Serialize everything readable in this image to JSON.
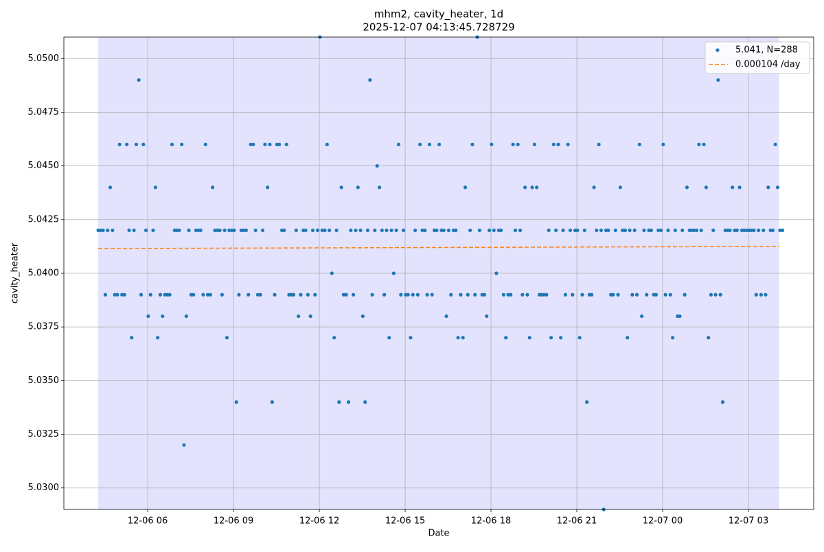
{
  "chart_data": {
    "type": "scatter",
    "title": "mhm2, cavity_heater, 1d",
    "subtitle": "2025-12-07 04:13:45.728729",
    "x_label": "Date",
    "y_label": "cavity_heater",
    "xlim": [
      3.07,
      29.28
    ],
    "ylim": [
      5.029,
      5.051
    ],
    "xticks": [
      {
        "value": 6,
        "label": "12-06 06"
      },
      {
        "value": 9,
        "label": "12-06 09"
      },
      {
        "value": 12,
        "label": "12-06 12"
      },
      {
        "value": 15,
        "label": "12-06 15"
      },
      {
        "value": 18,
        "label": "12-06 18"
      },
      {
        "value": 21,
        "label": "12-06 21"
      },
      {
        "value": 24,
        "label": "12-07 00"
      },
      {
        "value": 27,
        "label": "12-07 03"
      }
    ],
    "yticks": [
      {
        "value": 5.03,
        "label": "5.0300"
      },
      {
        "value": 5.0325,
        "label": "5.0325"
      },
      {
        "value": 5.035,
        "label": "5.0350"
      },
      {
        "value": 5.0375,
        "label": "5.0375"
      },
      {
        "value": 5.04,
        "label": "5.0400"
      },
      {
        "value": 5.0425,
        "label": "5.0425"
      },
      {
        "value": 5.045,
        "label": "5.0450"
      },
      {
        "value": 5.0475,
        "label": "5.0475"
      },
      {
        "value": 5.05,
        "label": "5.0500"
      }
    ],
    "grid": true,
    "legend": "upper right",
    "span": [
      4.27,
      28.07
    ],
    "span_color": "#e3e3fd",
    "series": [
      {
        "name": "5.041, N=288",
        "color": "#1f77b4",
        "x": [
          4.27,
          4.35,
          4.44,
          4.52,
          4.6,
          4.69,
          4.77,
          4.85,
          4.94,
          5.02,
          5.1,
          5.19,
          5.27,
          5.35,
          5.44,
          5.52,
          5.6,
          5.69,
          5.77,
          5.85,
          5.94,
          6.02,
          6.1,
          6.19,
          6.27,
          6.35,
          6.44,
          6.52,
          6.6,
          6.69,
          6.77,
          6.85,
          6.94,
          7.02,
          7.1,
          7.19,
          7.27,
          7.35,
          7.44,
          7.52,
          7.6,
          7.69,
          7.77,
          7.85,
          7.94,
          8.02,
          8.1,
          8.19,
          8.27,
          8.35,
          8.44,
          8.52,
          8.6,
          8.69,
          8.77,
          8.85,
          8.94,
          9.02,
          9.1,
          9.19,
          9.27,
          9.35,
          9.44,
          9.52,
          9.6,
          9.69,
          9.77,
          9.85,
          9.94,
          10.02,
          10.1,
          10.19,
          10.27,
          10.35,
          10.44,
          10.52,
          10.6,
          10.69,
          10.77,
          10.85,
          10.94,
          11.02,
          11.1,
          11.19,
          11.27,
          11.35,
          11.44,
          11.52,
          11.6,
          11.69,
          11.77,
          11.85,
          11.94,
          12.02,
          12.1,
          12.19,
          12.27,
          12.35,
          12.44,
          12.52,
          12.6,
          12.69,
          12.77,
          12.85,
          12.94,
          13.02,
          13.1,
          13.19,
          13.27,
          13.35,
          13.44,
          13.52,
          13.6,
          13.69,
          13.77,
          13.85,
          13.94,
          14.02,
          14.1,
          14.19,
          14.27,
          14.35,
          14.44,
          14.52,
          14.6,
          14.69,
          14.77,
          14.85,
          14.94,
          15.02,
          15.1,
          15.19,
          15.27,
          15.35,
          15.44,
          15.52,
          15.6,
          15.69,
          15.77,
          15.85,
          15.94,
          16.02,
          16.1,
          16.19,
          16.27,
          16.35,
          16.44,
          16.52,
          16.6,
          16.69,
          16.77,
          16.85,
          16.94,
          17.02,
          17.1,
          17.19,
          17.27,
          17.35,
          17.44,
          17.52,
          17.6,
          17.69,
          17.77,
          17.85,
          17.94,
          18.02,
          18.1,
          18.19,
          18.27,
          18.35,
          18.44,
          18.52,
          18.6,
          18.69,
          18.77,
          18.85,
          18.94,
          19.02,
          19.1,
          19.19,
          19.27,
          19.35,
          19.44,
          19.52,
          19.6,
          19.69,
          19.77,
          19.85,
          19.94,
          20.02,
          20.1,
          20.19,
          20.27,
          20.35,
          20.44,
          20.52,
          20.6,
          20.69,
          20.77,
          20.85,
          20.94,
          21.02,
          21.1,
          21.19,
          21.27,
          21.35,
          21.44,
          21.52,
          21.6,
          21.69,
          21.77,
          21.85,
          21.94,
          22.02,
          22.1,
          22.19,
          22.27,
          22.35,
          22.44,
          22.52,
          22.6,
          22.69,
          22.77,
          22.85,
          22.94,
          23.02,
          23.1,
          23.19,
          23.27,
          23.35,
          23.44,
          23.52,
          23.6,
          23.69,
          23.77,
          23.85,
          23.94,
          24.02,
          24.1,
          24.19,
          24.27,
          24.35,
          24.44,
          24.52,
          24.6,
          24.69,
          24.77,
          24.85,
          24.94,
          25.02,
          25.1,
          25.19,
          25.27,
          25.35,
          25.44,
          25.52,
          25.6,
          25.69,
          25.77,
          25.85,
          25.94,
          26.02,
          26.1,
          26.19,
          26.27,
          26.35,
          26.44,
          26.52,
          26.6,
          26.69,
          26.77,
          26.85,
          26.94,
          27.02,
          27.1,
          27.19,
          27.27,
          27.35,
          27.44,
          27.52,
          27.6,
          27.69,
          27.77,
          27.85,
          27.94,
          28.02,
          28.1,
          28.19
        ],
        "values": [
          5.042,
          5.042,
          5.042,
          5.039,
          5.042,
          5.044,
          5.042,
          5.039,
          5.039,
          5.046,
          5.039,
          5.039,
          5.046,
          5.042,
          5.037,
          5.042,
          5.046,
          5.049,
          5.039,
          5.046,
          5.042,
          5.038,
          5.039,
          5.042,
          5.044,
          5.037,
          5.039,
          5.038,
          5.039,
          5.039,
          5.039,
          5.046,
          5.042,
          5.042,
          5.042,
          5.046,
          5.032,
          5.038,
          5.042,
          5.039,
          5.039,
          5.042,
          5.042,
          5.042,
          5.039,
          5.046,
          5.039,
          5.039,
          5.044,
          5.042,
          5.042,
          5.042,
          5.039,
          5.042,
          5.037,
          5.042,
          5.042,
          5.042,
          5.034,
          5.039,
          5.042,
          5.042,
          5.042,
          5.039,
          5.046,
          5.046,
          5.042,
          5.039,
          5.039,
          5.042,
          5.046,
          5.044,
          5.046,
          5.034,
          5.039,
          5.046,
          5.046,
          5.042,
          5.042,
          5.046,
          5.039,
          5.039,
          5.039,
          5.042,
          5.038,
          5.039,
          5.042,
          5.042,
          5.039,
          5.038,
          5.042,
          5.039,
          5.042,
          5.051,
          5.042,
          5.042,
          5.046,
          5.042,
          5.04,
          5.037,
          5.042,
          5.034,
          5.044,
          5.039,
          5.039,
          5.034,
          5.042,
          5.039,
          5.042,
          5.044,
          5.042,
          5.038,
          5.034,
          5.042,
          5.049,
          5.039,
          5.042,
          5.045,
          5.044,
          5.042,
          5.039,
          5.042,
          5.037,
          5.042,
          5.04,
          5.042,
          5.046,
          5.039,
          5.042,
          5.039,
          5.039,
          5.037,
          5.039,
          5.042,
          5.039,
          5.046,
          5.042,
          5.042,
          5.039,
          5.046,
          5.039,
          5.042,
          5.042,
          5.046,
          5.042,
          5.042,
          5.038,
          5.042,
          5.039,
          5.042,
          5.042,
          5.037,
          5.039,
          5.037,
          5.044,
          5.039,
          5.042,
          5.046,
          5.039,
          5.051,
          5.042,
          5.039,
          5.039,
          5.038,
          5.042,
          5.046,
          5.042,
          5.04,
          5.042,
          5.042,
          5.039,
          5.037,
          5.039,
          5.039,
          5.046,
          5.042,
          5.046,
          5.042,
          5.039,
          5.044,
          5.039,
          5.037,
          5.044,
          5.046,
          5.044,
          5.039,
          5.039,
          5.039,
          5.039,
          5.042,
          5.037,
          5.046,
          5.042,
          5.046,
          5.037,
          5.042,
          5.039,
          5.046,
          5.042,
          5.039,
          5.042,
          5.042,
          5.037,
          5.039,
          5.042,
          5.034,
          5.039,
          5.039,
          5.044,
          5.042,
          5.046,
          5.042,
          5.029,
          5.042,
          5.042,
          5.039,
          5.039,
          5.042,
          5.039,
          5.044,
          5.042,
          5.042,
          5.037,
          5.042,
          5.039,
          5.042,
          5.039,
          5.046,
          5.038,
          5.042,
          5.039,
          5.042,
          5.042,
          5.039,
          5.039,
          5.042,
          5.042,
          5.046,
          5.039,
          5.042,
          5.039,
          5.037,
          5.042,
          5.038,
          5.038,
          5.042,
          5.039,
          5.044,
          5.042,
          5.042,
          5.042,
          5.042,
          5.046,
          5.042,
          5.046,
          5.044,
          5.037,
          5.039,
          5.042,
          5.039,
          5.049,
          5.039,
          5.034,
          5.042,
          5.042,
          5.042,
          5.044,
          5.042,
          5.042,
          5.044,
          5.042,
          5.042,
          5.042,
          5.042,
          5.042,
          5.042,
          5.039,
          5.042,
          5.039,
          5.042,
          5.039,
          5.044,
          5.042,
          5.042,
          5.046,
          5.044,
          5.042,
          5.042
        ]
      },
      {
        "name": "0.000104 /day",
        "color": "#ff7f0e",
        "type": "line",
        "dashed": true,
        "x": [
          4.27,
          28.07
        ],
        "values": [
          5.04115,
          5.04125
        ]
      }
    ]
  }
}
